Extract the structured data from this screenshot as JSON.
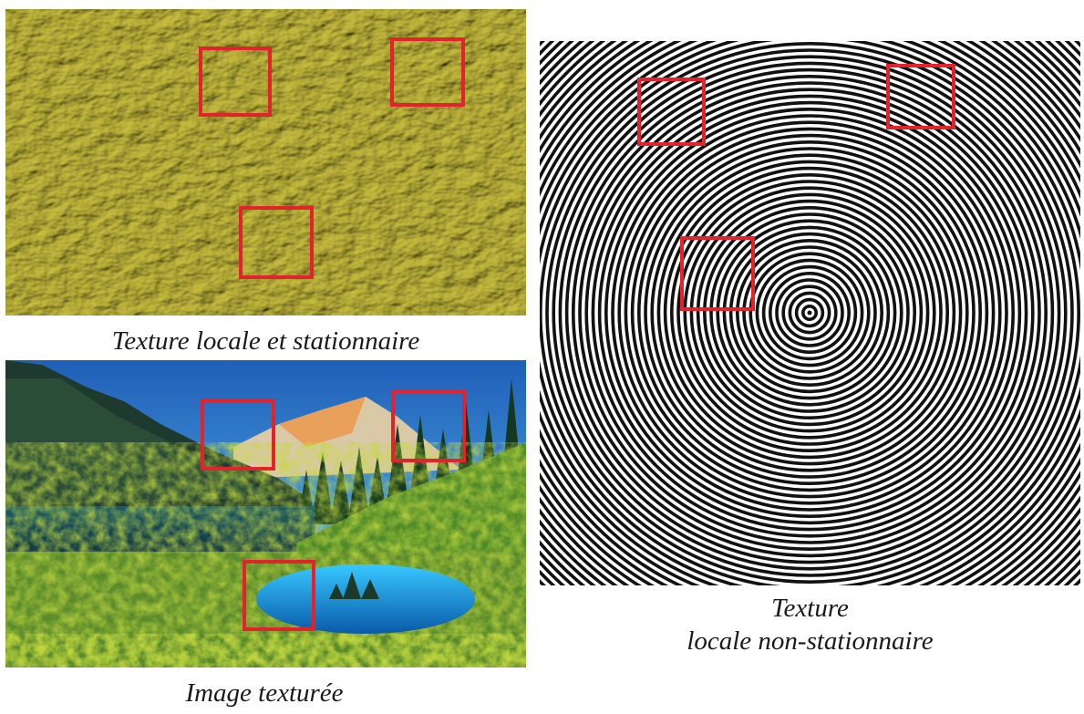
{
  "captions": {
    "stationary_texture": "Texture locale et stationnaire",
    "textured_image": "Image texturée",
    "nonstationary_line1": "Texture",
    "nonstationary_line2": "locale non-stationnaire"
  },
  "panels": {
    "stationary_texture": {
      "image": "yellow-rough-texture",
      "highlight_boxes": 3
    },
    "textured_image": {
      "image": "mountain-lake-landscape",
      "highlight_boxes": 3
    },
    "nonstationary_texture": {
      "image": "concentric-rings-pattern",
      "highlight_boxes": 3
    }
  },
  "colors": {
    "highlight": "#e3232b",
    "texture_base": "#c9c46a",
    "ring_dark": "#111111",
    "ring_light": "#ffffff"
  }
}
